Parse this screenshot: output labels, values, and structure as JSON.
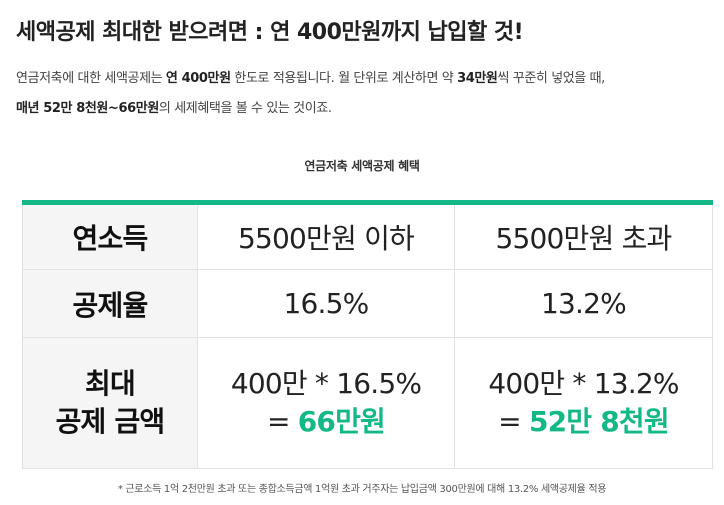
{
  "heading": "세액공제 최대한 받으려면 : 연 400만원까지 납입할 것!",
  "intro": {
    "l1_a": "연금저축에 대한 세액공제는 ",
    "l1_b": "연 400만원",
    "l1_c": " 한도로 적용됩니다. 월 단위로 계산하면 약 ",
    "l1_d": "34만원",
    "l1_e": "씩 꾸준히 넣었을 때,",
    "l2_a": "매년 52만 8천원~66만원",
    "l2_b": "의 세제혜택을 볼 수 있는 것이죠."
  },
  "table": {
    "caption": "연금저축 세액공제 혜택",
    "row_income": {
      "label": "연소득",
      "col1": "5500만원 이하",
      "col2": "5500만원 초과"
    },
    "row_rate": {
      "label": "공제율",
      "col1": "16.5%",
      "col2": "13.2%"
    },
    "row_max": {
      "label_line1": "최대",
      "label_line2": "공제 금액",
      "col1_formula": "400만 * 16.5%",
      "col1_eq": "= ",
      "col1_result": "66만원",
      "col2_formula": "400만 * 13.2%",
      "col2_eq": "= ",
      "col2_result": "52만 8천원"
    }
  },
  "note": "* 근로소득 1억 2천만원 초과 또는 종합소득금액 1억원 초과 거주자는 납입금액 300만원에 대해 13.2% 세액공제율 적용",
  "colors": {
    "accent": "#13b886",
    "header_bg": "#f5f5f5"
  }
}
